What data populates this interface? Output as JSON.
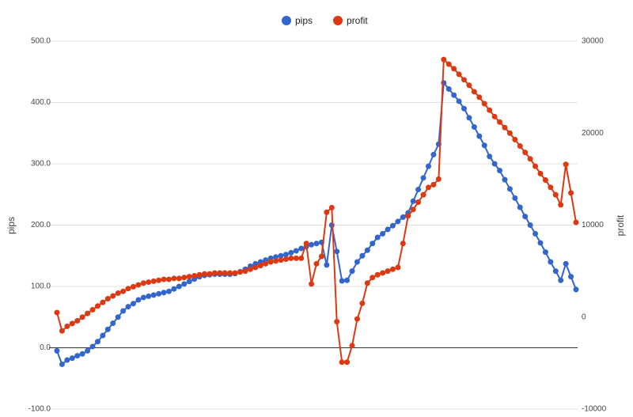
{
  "chart_data": {
    "type": "line",
    "ylabel": "pips",
    "y2label": "profit",
    "ylim": [
      -100,
      500
    ],
    "yticks": [
      {
        "value": -100,
        "label": "-100.0"
      },
      {
        "value": 0,
        "label": "0.0"
      },
      {
        "value": 100,
        "label": "100.0"
      },
      {
        "value": 200,
        "label": "200.0"
      },
      {
        "value": 300,
        "label": "300.0"
      },
      {
        "value": 400,
        "label": "400.0"
      },
      {
        "value": 500,
        "label": "500.0"
      }
    ],
    "y2lim": [
      -10000,
      30000
    ],
    "y2ticks": [
      -10000,
      0,
      10000,
      20000,
      30000
    ],
    "grid": true,
    "legend": "top",
    "series": [
      {
        "name": "pips",
        "color": "#3366cc",
        "values": [
          -5,
          -27,
          -20,
          -17,
          -13,
          -10,
          -5,
          2,
          10,
          20,
          30,
          40,
          50,
          60,
          67,
          72,
          78,
          82,
          84,
          86,
          88,
          90,
          92,
          96,
          100,
          104,
          108,
          112,
          116,
          118,
          119,
          120,
          120,
          120,
          120,
          121,
          124,
          128,
          133,
          137,
          140,
          143,
          146,
          148,
          150,
          152,
          155,
          158,
          162,
          165,
          168,
          170,
          172,
          135,
          200,
          157,
          109,
          110,
          125,
          140,
          150,
          159,
          170,
          180,
          186,
          193,
          199,
          206,
          213,
          220,
          239,
          258,
          277,
          296,
          315,
          332,
          432,
          422,
          412,
          402,
          390,
          375,
          360,
          345,
          330,
          312,
          300,
          289,
          274,
          259,
          244,
          229,
          214,
          200,
          186,
          171,
          156,
          140,
          125,
          110,
          137,
          116,
          95
        ]
      },
      {
        "name": "profit",
        "color": "#dc3912",
        "axis": "y2",
        "values": [
          500,
          -1500,
          -1000,
          -700,
          -400,
          0,
          400,
          800,
          1200,
          1600,
          2000,
          2300,
          2600,
          2800,
          3100,
          3300,
          3500,
          3700,
          3800,
          3900,
          4000,
          4100,
          4100,
          4200,
          4200,
          4300,
          4400,
          4500,
          4600,
          4700,
          4700,
          4800,
          4800,
          4800,
          4800,
          4800,
          4900,
          5000,
          5200,
          5400,
          5600,
          5800,
          6000,
          6100,
          6200,
          6300,
          6400,
          6400,
          6400,
          8000,
          3600,
          5800,
          6600,
          11400,
          11900,
          -500,
          -4900,
          -4900,
          -3100,
          -200,
          1500,
          3700,
          4300,
          4600,
          4800,
          5000,
          5200,
          5400,
          8000,
          11000,
          11700,
          12500,
          13300,
          14100,
          14400,
          15000,
          28000,
          27500,
          27000,
          26400,
          25800,
          25200,
          24500,
          23900,
          23200,
          22500,
          21800,
          21200,
          20600,
          20000,
          19300,
          18600,
          17900,
          17200,
          16400,
          15600,
          14900,
          14100,
          13300,
          12200,
          16600,
          13500,
          10300
        ]
      }
    ]
  }
}
